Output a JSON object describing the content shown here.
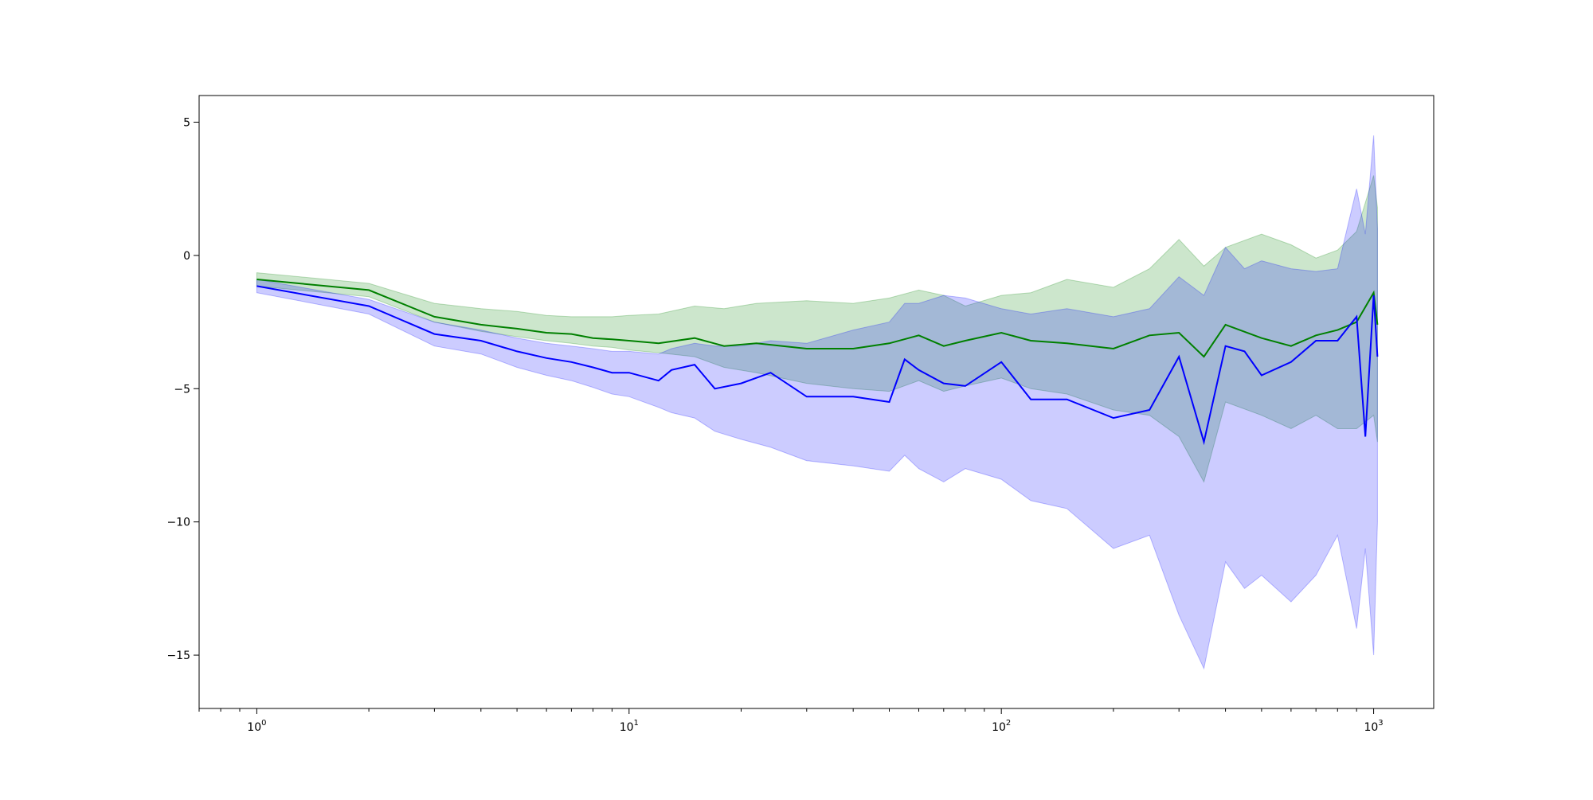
{
  "chart_data": {
    "type": "line",
    "title": "",
    "xlabel": "",
    "ylabel": "",
    "xscale": "log",
    "xlim": [
      0.7,
      1450
    ],
    "ylim": [
      -17,
      6
    ],
    "grid": false,
    "legend": "none",
    "xticks": [
      {
        "value": 1,
        "base": "10",
        "exp": "0"
      },
      {
        "value": 10,
        "base": "10",
        "exp": "1"
      },
      {
        "value": 100,
        "base": "10",
        "exp": "2"
      },
      {
        "value": 1000,
        "base": "10",
        "exp": "3"
      }
    ],
    "yticks": [
      {
        "value": 5,
        "label": "5"
      },
      {
        "value": 0,
        "label": "0"
      },
      {
        "value": -5,
        "label": "−5"
      },
      {
        "value": -10,
        "label": "−10"
      },
      {
        "value": -15,
        "label": "−15"
      }
    ],
    "series": [
      {
        "color": "#008000",
        "band_color": "#008000",
        "band_opacity": 0.2,
        "x": [
          1,
          2,
          3,
          4,
          5,
          6,
          7,
          8,
          9,
          10,
          12,
          15,
          18,
          22,
          30,
          40,
          50,
          60,
          70,
          80,
          100,
          120,
          150,
          200,
          250,
          300,
          350,
          400,
          500,
          600,
          700,
          800,
          900,
          1000,
          1024
        ],
        "mean": [
          -0.9,
          -1.3,
          -2.3,
          -2.6,
          -2.75,
          -2.9,
          -2.95,
          -3.1,
          -3.15,
          -3.2,
          -3.3,
          -3.1,
          -3.4,
          -3.3,
          -3.5,
          -3.5,
          -3.3,
          -3.0,
          -3.4,
          -3.2,
          -2.9,
          -3.2,
          -3.3,
          -3.5,
          -3.0,
          -2.9,
          -3.8,
          -2.6,
          -3.1,
          -3.4,
          -3.0,
          -2.8,
          -2.5,
          -1.4,
          -2.6
        ],
        "upper": [
          -0.65,
          -1.05,
          -1.8,
          -2.0,
          -2.1,
          -2.25,
          -2.3,
          -2.3,
          -2.3,
          -2.25,
          -2.2,
          -1.9,
          -2.0,
          -1.8,
          -1.7,
          -1.8,
          -1.6,
          -1.3,
          -1.5,
          -1.9,
          -1.5,
          -1.4,
          -0.9,
          -1.2,
          -0.5,
          0.6,
          -0.4,
          0.3,
          0.8,
          0.4,
          -0.1,
          0.2,
          0.9,
          3.0,
          1.8
        ],
        "lower": [
          -1.15,
          -1.55,
          -2.5,
          -2.85,
          -3.05,
          -3.2,
          -3.3,
          -3.4,
          -3.45,
          -3.55,
          -3.65,
          -3.8,
          -4.2,
          -4.4,
          -4.8,
          -5.0,
          -5.1,
          -4.7,
          -5.1,
          -4.9,
          -4.6,
          -5.0,
          -5.2,
          -5.8,
          -6.0,
          -6.8,
          -8.5,
          -5.5,
          -6.0,
          -6.5,
          -6.0,
          -6.5,
          -6.5,
          -6.0,
          -7.0
        ]
      },
      {
        "color": "#0000ff",
        "band_color": "#0000ff",
        "band_opacity": 0.2,
        "x": [
          1,
          2,
          3,
          4,
          5,
          6,
          7,
          8,
          9,
          10,
          12,
          13,
          15,
          17,
          20,
          24,
          30,
          40,
          50,
          55,
          60,
          70,
          80,
          100,
          120,
          150,
          200,
          250,
          300,
          350,
          400,
          450,
          500,
          600,
          700,
          800,
          900,
          950,
          1000,
          1024
        ],
        "mean": [
          -1.15,
          -1.9,
          -2.95,
          -3.2,
          -3.6,
          -3.85,
          -4.0,
          -4.2,
          -4.4,
          -4.4,
          -4.7,
          -4.3,
          -4.1,
          -5.0,
          -4.8,
          -4.4,
          -5.3,
          -5.3,
          -5.5,
          -3.9,
          -4.3,
          -4.8,
          -4.9,
          -4.0,
          -5.4,
          -5.4,
          -6.1,
          -5.8,
          -3.8,
          -7.0,
          -3.4,
          -3.6,
          -4.5,
          -4.0,
          -3.2,
          -3.2,
          -2.3,
          -6.8,
          -1.5,
          -3.8
        ],
        "upper": [
          -0.9,
          -1.65,
          -2.5,
          -2.8,
          -3.1,
          -3.3,
          -3.4,
          -3.5,
          -3.6,
          -3.6,
          -3.7,
          -3.5,
          -3.3,
          -3.4,
          -3.4,
          -3.2,
          -3.3,
          -2.8,
          -2.5,
          -1.8,
          -1.8,
          -1.5,
          -1.6,
          -2.0,
          -2.2,
          -2.0,
          -2.3,
          -2.0,
          -0.8,
          -1.5,
          0.3,
          -0.5,
          -0.2,
          -0.5,
          -0.6,
          -0.5,
          2.5,
          0.8,
          4.5,
          1.0
        ],
        "lower": [
          -1.4,
          -2.2,
          -3.4,
          -3.7,
          -4.2,
          -4.5,
          -4.7,
          -4.95,
          -5.2,
          -5.3,
          -5.7,
          -5.9,
          -6.1,
          -6.6,
          -6.9,
          -7.2,
          -7.7,
          -7.9,
          -8.1,
          -7.5,
          -8.0,
          -8.5,
          -8.0,
          -8.4,
          -9.2,
          -9.5,
          -11.0,
          -10.5,
          -13.5,
          -15.5,
          -11.5,
          -12.5,
          -12.0,
          -13.0,
          -12.0,
          -10.5,
          -14.0,
          -11.0,
          -15.0,
          -10.0
        ]
      }
    ]
  }
}
